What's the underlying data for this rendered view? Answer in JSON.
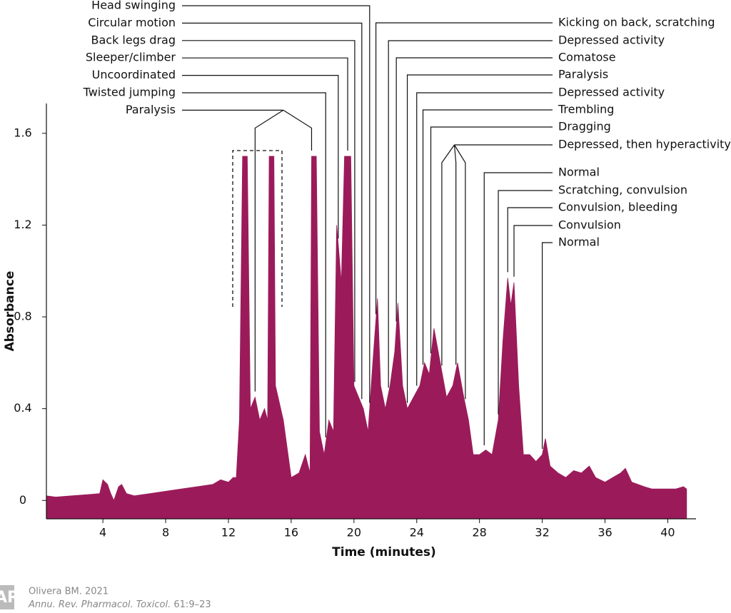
{
  "chart_data": {
    "type": "area",
    "xlabel": "Time (minutes)",
    "ylabel": "Absorbance",
    "xlim": [
      0.4,
      41.8
    ],
    "ylim": [
      -0.08,
      1.73
    ],
    "xticks": [
      4,
      8,
      12,
      16,
      20,
      24,
      28,
      32,
      36,
      40
    ],
    "yticks": [
      0,
      0.4,
      0.8,
      1.2,
      1.6
    ],
    "color": "#9b1b5a",
    "x": [
      0.4,
      1,
      2,
      3,
      3.8,
      4,
      4.3,
      4.5,
      4.7,
      5,
      5.2,
      5.5,
      6,
      7,
      8,
      9,
      10,
      11,
      11.5,
      12,
      12.3,
      12.5,
      12.7,
      12.9,
      13.2,
      13.4,
      13.7,
      14,
      14.3,
      14.5,
      14.6,
      14.9,
      15,
      15.5,
      16,
      16.5,
      16.9,
      17.2,
      17.3,
      17.6,
      17.8,
      18.1,
      18.4,
      18.7,
      18.9,
      19.2,
      19.4,
      19.8,
      20,
      20.3,
      20.6,
      20.9,
      21.2,
      21.5,
      21.7,
      22,
      22.3,
      22.6,
      22.8,
      23.1,
      23.4,
      23.8,
      24.2,
      24.5,
      24.8,
      25.1,
      25.5,
      25.9,
      26.3,
      26.6,
      27,
      27.3,
      27.6,
      28,
      28.4,
      28.8,
      29.2,
      29.5,
      29.8,
      30,
      30.2,
      30.5,
      30.8,
      31.2,
      31.6,
      32,
      32.2,
      32.5,
      33,
      33.5,
      34,
      34.5,
      35,
      35.4,
      36,
      36.5,
      37,
      37.3,
      37.7,
      38.5,
      39,
      40,
      40.5,
      41,
      41.2
    ],
    "values": [
      0.02,
      0.015,
      0.02,
      0.025,
      0.03,
      0.09,
      0.07,
      0.03,
      0.0,
      0.06,
      0.07,
      0.03,
      0.02,
      0.03,
      0.04,
      0.05,
      0.06,
      0.07,
      0.09,
      0.08,
      0.1,
      0.1,
      0.35,
      1.5,
      1.5,
      0.4,
      0.45,
      0.35,
      0.4,
      0.35,
      1.5,
      1.5,
      0.5,
      0.35,
      0.1,
      0.12,
      0.2,
      0.12,
      1.5,
      1.5,
      0.3,
      0.2,
      0.35,
      0.3,
      1.2,
      0.95,
      1.5,
      1.5,
      0.5,
      0.45,
      0.4,
      0.3,
      0.6,
      0.88,
      0.5,
      0.4,
      0.5,
      0.65,
      0.86,
      0.5,
      0.4,
      0.45,
      0.5,
      0.6,
      0.55,
      0.75,
      0.6,
      0.45,
      0.5,
      0.6,
      0.45,
      0.35,
      0.2,
      0.2,
      0.22,
      0.2,
      0.35,
      0.7,
      0.97,
      0.85,
      0.95,
      0.5,
      0.2,
      0.2,
      0.17,
      0.2,
      0.27,
      0.15,
      0.12,
      0.1,
      0.13,
      0.12,
      0.15,
      0.1,
      0.08,
      0.1,
      0.12,
      0.14,
      0.08,
      0.06,
      0.05,
      0.05,
      0.05,
      0.06,
      0.05
    ],
    "annotations_left": [
      {
        "text": "Head swinging",
        "x": 21.0
      },
      {
        "text": "Circular motion",
        "x": 20.5
      },
      {
        "text": "Back legs drag",
        "x": 20.05
      },
      {
        "text": "Sleeper/climber",
        "x": 19.6
      },
      {
        "text": "Uncoordinated",
        "x": 19.0
      },
      {
        "text": "Twisted jumping",
        "x": 18.2
      },
      {
        "text": "Paralysis",
        "x": [
          13.7,
          17.3
        ]
      }
    ],
    "annotations_right": [
      {
        "text": "Kicking on back, scratching",
        "x": 21.4
      },
      {
        "text": "Depressed activity",
        "x": 22.2
      },
      {
        "text": "Comatose",
        "x": 22.7
      },
      {
        "text": "Paralysis",
        "x": 23.4
      },
      {
        "text": "Depressed activity",
        "x": 24.0
      },
      {
        "text": "Trembling",
        "x": 24.4
      },
      {
        "text": "Dragging",
        "x": 24.9
      },
      {
        "text": "Depressed, then hyperactivity",
        "x": [
          25.6,
          26.5,
          27.1
        ]
      },
      {
        "text": "Normal",
        "x": 28.3
      },
      {
        "text": "Scratching, convulsion",
        "x": 29.2
      },
      {
        "text": "Convulsion, bleeding",
        "x": 29.8
      },
      {
        "text": "Convulsion",
        "x": 30.2
      },
      {
        "text": "Normal",
        "x": 32.0
      }
    ]
  },
  "source": {
    "author": "Olivera BM. 2021",
    "journal": "Annu. Rev. Pharmacol. Toxicol.",
    "pages": "61:9–23"
  }
}
